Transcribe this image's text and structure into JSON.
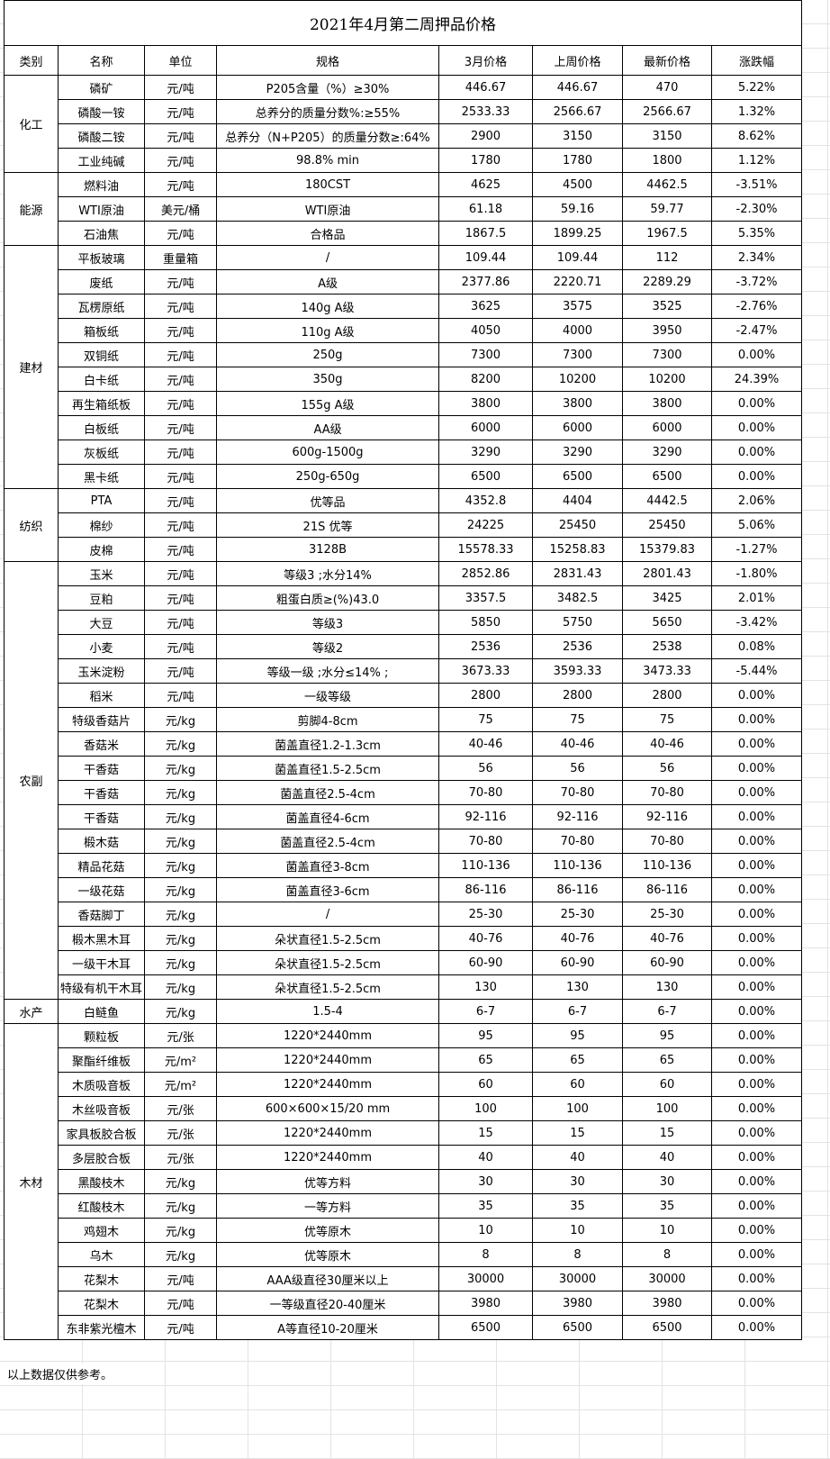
{
  "title": "2021年4月第二周押品价格",
  "headers": [
    "类别",
    "名称",
    "单位",
    "规格",
    "3月价格",
    "上周价格",
    "最新价格",
    "涨跌幅"
  ],
  "groups": [
    {
      "category": "化工",
      "rows": [
        [
          "磷矿",
          "元/吨",
          "P205含量（%）≥30%",
          "446.67",
          "446.67",
          "470",
          "5.22%"
        ],
        [
          "磷酸一铵",
          "元/吨",
          "总养分的质量分数%:≥55%",
          "2533.33",
          "2566.67",
          "2566.67",
          "1.32%"
        ],
        [
          "磷酸二铵",
          "元/吨",
          "总养分（N+P205）的质量分数≥:64%",
          "2900",
          "3150",
          "3150",
          "8.62%"
        ],
        [
          "工业纯碱",
          "元/吨",
          "98.8% min",
          "1780",
          "1780",
          "1800",
          "1.12%"
        ]
      ]
    },
    {
      "category": "能源",
      "rows": [
        [
          "燃料油",
          "元/吨",
          "180CST",
          "4625",
          "4500",
          "4462.5",
          "-3.51%"
        ],
        [
          "WTI原油",
          "美元/桶",
          "WTI原油",
          "61.18",
          "59.16",
          "59.77",
          "-2.30%"
        ],
        [
          "石油焦",
          "元/吨",
          "合格品",
          "1867.5",
          "1899.25",
          "1967.5",
          "5.35%"
        ]
      ]
    },
    {
      "category": "建材",
      "rows": [
        [
          "平板玻璃",
          "重量箱",
          "/",
          "109.44",
          "109.44",
          "112",
          "2.34%"
        ],
        [
          "废纸",
          "元/吨",
          "A级",
          "2377.86",
          "2220.71",
          "2289.29",
          "-3.72%"
        ],
        [
          "瓦楞原纸",
          "元/吨",
          "140g A级",
          "3625",
          "3575",
          "3525",
          "-2.76%"
        ],
        [
          "箱板纸",
          "元/吨",
          "110g A级",
          "4050",
          "4000",
          "3950",
          "-2.47%"
        ],
        [
          "双铜纸",
          "元/吨",
          "250g",
          "7300",
          "7300",
          "7300",
          "0.00%"
        ],
        [
          "白卡纸",
          "元/吨",
          "350g",
          "8200",
          "10200",
          "10200",
          "24.39%"
        ],
        [
          "再生箱纸板",
          "元/吨",
          "155g A级",
          "3800",
          "3800",
          "3800",
          "0.00%"
        ],
        [
          "白板纸",
          "元/吨",
          "AA级",
          "6000",
          "6000",
          "6000",
          "0.00%"
        ],
        [
          "灰板纸",
          "元/吨",
          "600g-1500g",
          "3290",
          "3290",
          "3290",
          "0.00%"
        ],
        [
          "黑卡纸",
          "元/吨",
          "250g-650g",
          "6500",
          "6500",
          "6500",
          "0.00%"
        ]
      ]
    },
    {
      "category": "纺织",
      "rows": [
        [
          "PTA",
          "元/吨",
          "优等品",
          "4352.8",
          "4404",
          "4442.5",
          "2.06%"
        ],
        [
          "棉纱",
          "元/吨",
          "21S 优等",
          "24225",
          "25450",
          "25450",
          "5.06%"
        ],
        [
          "皮棉",
          "元/吨",
          "3128B",
          "15578.33",
          "15258.83",
          "15379.83",
          "-1.27%"
        ]
      ]
    },
    {
      "category": "农副",
      "rows": [
        [
          "玉米",
          "元/吨",
          "等级3 ;水分14%",
          "2852.86",
          "2831.43",
          "2801.43",
          "-1.80%"
        ],
        [
          "豆粕",
          "元/吨",
          "粗蛋白质≥(%)43.0",
          "3357.5",
          "3482.5",
          "3425",
          "2.01%"
        ],
        [
          "大豆",
          "元/吨",
          "等级3",
          "5850",
          "5750",
          "5650",
          "-3.42%"
        ],
        [
          "小麦",
          "元/吨",
          "等级2",
          "2536",
          "2536",
          "2538",
          "0.08%"
        ],
        [
          "玉米淀粉",
          "元/吨",
          "等级一级 ;水分≤14% ;",
          "3673.33",
          "3593.33",
          "3473.33",
          "-5.44%"
        ],
        [
          "稻米",
          "元/吨",
          "一级等级",
          "2800",
          "2800",
          "2800",
          "0.00%"
        ],
        [
          "特级香菇片",
          "元/kg",
          "剪脚4-8cm",
          "75",
          "75",
          "75",
          "0.00%"
        ],
        [
          "香菇米",
          "元/kg",
          "菌盖直径1.2-1.3cm",
          "40-46",
          "40-46",
          "40-46",
          "0.00%"
        ],
        [
          "干香菇",
          "元/kg",
          "菌盖直径1.5-2.5cm",
          "56",
          "56",
          "56",
          "0.00%"
        ],
        [
          "干香菇",
          "元/kg",
          "菌盖直径2.5-4cm",
          "70-80",
          "70-80",
          "70-80",
          "0.00%"
        ],
        [
          "干香菇",
          "元/kg",
          "菌盖直径4-6cm",
          "92-116",
          "92-116",
          "92-116",
          "0.00%"
        ],
        [
          "椴木菇",
          "元/kg",
          "菌盖直径2.5-4cm",
          "70-80",
          "70-80",
          "70-80",
          "0.00%"
        ],
        [
          "精品花菇",
          "元/kg",
          "菌盖直径3-8cm",
          "110-136",
          "110-136",
          "110-136",
          "0.00%"
        ],
        [
          "一级花菇",
          "元/kg",
          "菌盖直径3-6cm",
          "86-116",
          "86-116",
          "86-116",
          "0.00%"
        ],
        [
          "香菇脚丁",
          "元/kg",
          "/",
          "25-30",
          "25-30",
          "25-30",
          "0.00%"
        ],
        [
          "椴木黑木耳",
          "元/kg",
          "朵状直径1.5-2.5cm",
          "40-76",
          "40-76",
          "40-76",
          "0.00%"
        ],
        [
          "一级干木耳",
          "元/kg",
          "朵状直径1.5-2.5cm",
          "60-90",
          "60-90",
          "60-90",
          "0.00%"
        ],
        [
          "特级有机干木耳",
          "元/kg",
          "朵状直径1.5-2.5cm",
          "130",
          "130",
          "130",
          "0.00%"
        ]
      ]
    },
    {
      "category": "水产",
      "rows": [
        [
          "白鲢鱼",
          "元/kg",
          "1.5-4",
          "6-7",
          "6-7",
          "6-7",
          "0.00%"
        ]
      ]
    },
    {
      "category": "木材",
      "rows": [
        [
          "颗粒板",
          "元/张",
          "1220*2440mm",
          "95",
          "95",
          "95",
          "0.00%"
        ],
        [
          "聚酯纤维板",
          "元/m²",
          "1220*2440mm",
          "65",
          "65",
          "65",
          "0.00%"
        ],
        [
          "木质吸音板",
          "元/m²",
          "1220*2440mm",
          "60",
          "60",
          "60",
          "0.00%"
        ],
        [
          "木丝吸音板",
          "元/张",
          "600×600×15/20 mm",
          "100",
          "100",
          "100",
          "0.00%"
        ],
        [
          "家具板胶合板",
          "元/张",
          "1220*2440mm",
          "15",
          "15",
          "15",
          "0.00%"
        ],
        [
          "多层胶合板",
          "元/张",
          "1220*2440mm",
          "40",
          "40",
          "40",
          "0.00%"
        ],
        [
          "黑酸枝木",
          "元/kg",
          "优等方料",
          "30",
          "30",
          "30",
          "0.00%"
        ],
        [
          "红酸枝木",
          "元/kg",
          "一等方料",
          "35",
          "35",
          "35",
          "0.00%"
        ],
        [
          "鸡翅木",
          "元/kg",
          "优等原木",
          "10",
          "10",
          "10",
          "0.00%"
        ],
        [
          "乌木",
          "元/kg",
          "优等原木",
          "8",
          "8",
          "8",
          "0.00%"
        ],
        [
          "花梨木",
          "元/吨",
          "AAA级直径30厘米以上",
          "30000",
          "30000",
          "30000",
          "0.00%"
        ],
        [
          "花梨木",
          "元/吨",
          "一等级直径20-40厘米",
          "3980",
          "3980",
          "3980",
          "0.00%"
        ],
        [
          "东非紫光檀木",
          "元/吨",
          "A等直径10-20厘米",
          "6500",
          "6500",
          "6500",
          "0.00%"
        ]
      ]
    }
  ],
  "note": "以上数据仅供参考。"
}
